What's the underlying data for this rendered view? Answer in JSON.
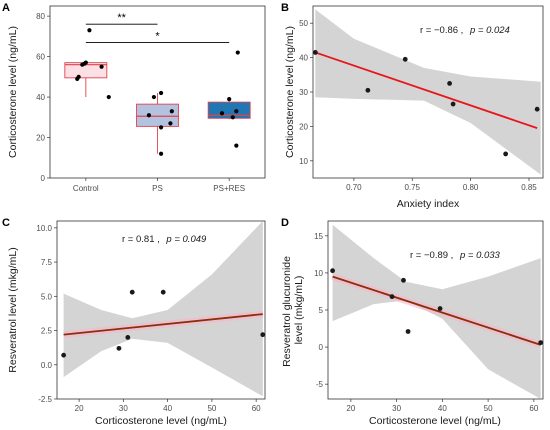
{
  "chart_data": [
    {
      "panel": "A",
      "type": "box",
      "title": "",
      "xlabel": "",
      "ylabel": "Corticosterone level (ng/mL)",
      "ylim": [
        0,
        85
      ],
      "yticks": [
        "0",
        "20",
        "40",
        "60",
        "80"
      ],
      "categories": [
        "Control",
        "PS",
        "PS+RES"
      ],
      "boxes": [
        {
          "name": "Control",
          "q1": 49.5,
          "median": 56,
          "q3": 57,
          "whisker_low": 40,
          "whisker_high": 57.5,
          "fill": "#fde0e6",
          "points": [
            {
              "dx": -0.12,
              "y": 49
            },
            {
              "dx": -0.1,
              "y": 50
            },
            {
              "dx": -0.05,
              "y": 56
            },
            {
              "dx": -0.02,
              "y": 56.5
            },
            {
              "dx": 0.0,
              "y": 57
            },
            {
              "dx": 0.22,
              "y": 55
            },
            {
              "dx": 0.05,
              "y": 73
            },
            {
              "dx": 0.32,
              "y": 40
            }
          ]
        },
        {
          "name": "PS",
          "q1": 25.5,
          "median": 30.5,
          "q3": 36.5,
          "whisker_low": 12,
          "whisker_high": 42,
          "fill": "#b3c3df",
          "points": [
            {
              "dx": -0.05,
              "y": 40
            },
            {
              "dx": 0.05,
              "y": 42
            },
            {
              "dx": -0.12,
              "y": 31
            },
            {
              "dx": 0.2,
              "y": 33
            },
            {
              "dx": 0.18,
              "y": 27
            },
            {
              "dx": 0.05,
              "y": 25
            },
            {
              "dx": 0.05,
              "y": 12
            }
          ]
        },
        {
          "name": "PS+RES",
          "q1": 29.5,
          "median": 31,
          "q3": 37.5,
          "whisker_low": 29,
          "whisker_high": 39,
          "fill": "#1f78b4",
          "points": [
            {
              "dx": 0.0,
              "y": 39
            },
            {
              "dx": -0.1,
              "y": 32
            },
            {
              "dx": 0.1,
              "y": 33
            },
            {
              "dx": 0.05,
              "y": 30
            },
            {
              "dx": 0.1,
              "y": 16
            },
            {
              "dx": 0.12,
              "y": 62
            }
          ]
        }
      ],
      "significance": [
        {
          "from": "Control",
          "to": "PS",
          "label": "**",
          "y": 76
        },
        {
          "from": "Control",
          "to": "PS+RES",
          "label": "*",
          "y": 67
        }
      ]
    },
    {
      "panel": "B",
      "type": "scatter",
      "title": "",
      "xlabel": "Anxiety index",
      "ylabel": "Corticosterone level (ng/mL)",
      "xlim": [
        0.665,
        0.862
      ],
      "ylim": [
        5,
        55
      ],
      "xticks": [
        0.7,
        0.75,
        0.8,
        0.85
      ],
      "xtick_labels": [
        "0.70",
        "0.75",
        "0.80",
        "0.85"
      ],
      "yticks": [
        10,
        20,
        30,
        40,
        50
      ],
      "ytick_labels": [
        "10",
        "20",
        "30",
        "40",
        "50"
      ],
      "points": [
        [
          0.667,
          41.5
        ],
        [
          0.712,
          30.5
        ],
        [
          0.744,
          39.5
        ],
        [
          0.782,
          32.5
        ],
        [
          0.785,
          26.5
        ],
        [
          0.83,
          12
        ],
        [
          0.857,
          25
        ]
      ],
      "fit": [
        [
          0.667,
          41.5
        ],
        [
          0.857,
          19.5
        ]
      ],
      "band_upper": [
        [
          0.667,
          54
        ],
        [
          0.7,
          45.5
        ],
        [
          0.76,
          37
        ],
        [
          0.8,
          34.5
        ],
        [
          0.86,
          33
        ]
      ],
      "band_lower": [
        [
          0.667,
          28.5
        ],
        [
          0.7,
          28
        ],
        [
          0.76,
          27.5
        ],
        [
          0.8,
          21
        ],
        [
          0.86,
          6
        ]
      ],
      "annotation_r": "r = −0.86 ,",
      "annotation_p": "p = 0.024",
      "line_color": "#e8151b"
    },
    {
      "panel": "C",
      "type": "scatter",
      "title": "",
      "xlabel": "Corticosterone level (ng/mL)",
      "ylabel": "Resveratrol level (mkg/mL)",
      "xlim": [
        15,
        62
      ],
      "ylim": [
        -2.5,
        10.5
      ],
      "xticks": [
        20,
        30,
        40,
        50,
        60
      ],
      "xtick_labels": [
        "20",
        "30",
        "40",
        "50",
        "60"
      ],
      "yticks": [
        -2.5,
        0.0,
        2.5,
        5.0,
        7.5,
        10.0
      ],
      "ytick_labels": [
        "-2.5",
        "0.0",
        "2.5",
        "5.0",
        "7.5",
        "10.0"
      ],
      "points": [
        [
          16.5,
          0.7
        ],
        [
          29,
          1.2
        ],
        [
          31,
          2.0
        ],
        [
          32,
          5.3
        ],
        [
          39,
          5.3
        ],
        [
          61.5,
          2.2
        ]
      ],
      "fit": [
        [
          16.5,
          2.2
        ],
        [
          61.5,
          3.7
        ]
      ],
      "band_upper": [
        [
          16.5,
          5.2
        ],
        [
          25,
          4.0
        ],
        [
          32,
          3.4
        ],
        [
          40,
          4.0
        ],
        [
          50,
          6.6
        ],
        [
          61.5,
          10.5
        ]
      ],
      "band_lower": [
        [
          16.5,
          -0.9
        ],
        [
          25,
          1.0
        ],
        [
          32,
          1.9
        ],
        [
          40,
          1.6
        ],
        [
          50,
          -0.2
        ],
        [
          61.5,
          -2.3
        ]
      ],
      "annotation_r": "r = 0.81 ,",
      "annotation_p": "p = 0.049",
      "line_color": "#8b2e0b"
    },
    {
      "panel": "D",
      "type": "scatter",
      "title": "",
      "xlabel": "Corticosterone level (ng/mL)",
      "ylabel": "Resveratrol glucuronide level (mkg/mL)",
      "xlim": [
        15,
        62
      ],
      "ylim": [
        -7,
        17
      ],
      "xticks": [
        20,
        30,
        40,
        50,
        60
      ],
      "xtick_labels": [
        "20",
        "30",
        "40",
        "50",
        "60"
      ],
      "yticks": [
        -5,
        0,
        5,
        10,
        15
      ],
      "ytick_labels": [
        "-5",
        "0",
        "5",
        "10",
        "15"
      ],
      "points": [
        [
          16,
          10.3
        ],
        [
          29,
          6.8
        ],
        [
          31.5,
          9.0
        ],
        [
          32.5,
          2.1
        ],
        [
          39.5,
          5.2
        ],
        [
          61.5,
          0.6
        ]
      ],
      "fit": [
        [
          16,
          9.5
        ],
        [
          61.5,
          0.3
        ]
      ],
      "band_upper": [
        [
          16,
          16.5
        ],
        [
          25,
          12.0
        ],
        [
          32,
          8.8
        ],
        [
          40,
          7.8
        ],
        [
          50,
          9.5
        ],
        [
          61.5,
          12.0
        ]
      ],
      "band_lower": [
        [
          16,
          3.5
        ],
        [
          25,
          5.8
        ],
        [
          32,
          6.3
        ],
        [
          40,
          3.8
        ],
        [
          50,
          -3.0
        ],
        [
          61.5,
          -7.0
        ]
      ],
      "annotation_r": "r = −0.89 ,",
      "annotation_p": "p = 0.033",
      "line_color": "#8b2e0b"
    }
  ]
}
